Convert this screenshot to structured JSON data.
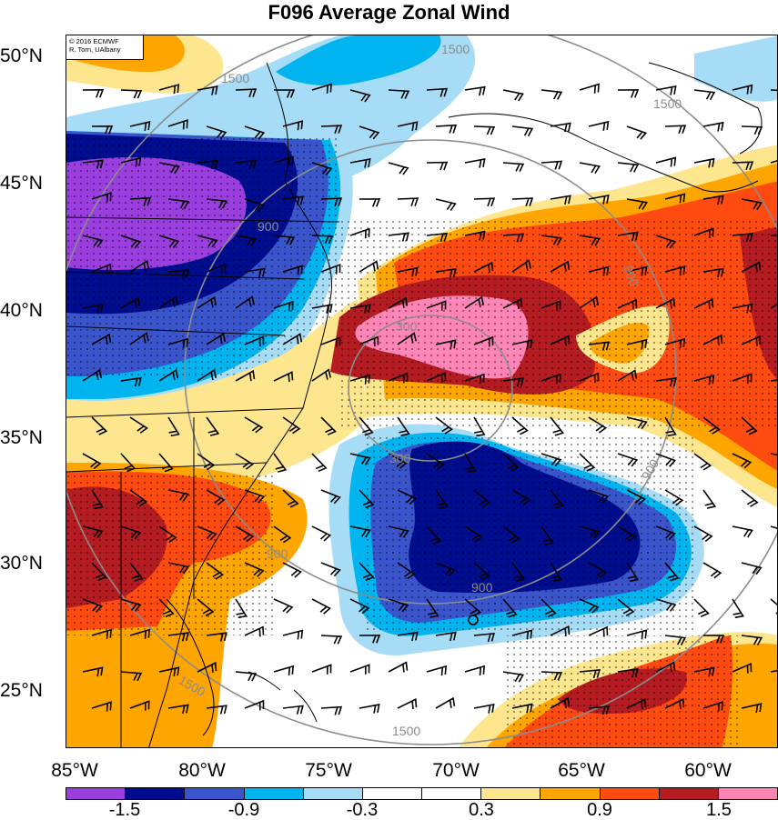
{
  "title": "F096 Average Zonal Wind",
  "credit": {
    "line1": "© 2016 ECMWF",
    "line2": "R. Torn, UAlbany"
  },
  "lat_labels": [
    "50°N",
    "45°N",
    "40°N",
    "35°N",
    "30°N",
    "25°N"
  ],
  "lon_labels": [
    "85°W",
    "80°W",
    "75°W",
    "70°W",
    "65°W",
    "60°W"
  ],
  "contour_labels": [
    "1500",
    "1500",
    "1500",
    "900",
    "900",
    "900",
    "900",
    "300",
    "300",
    "900",
    "1500",
    "1500"
  ],
  "colorbar": {
    "colors": [
      "#9a3ee0",
      "#000d8f",
      "#3a55cc",
      "#00b4f0",
      "#a6dcf5",
      "#ffffff",
      "#ffffff",
      "#fde68e",
      "#ffa500",
      "#ff4a10",
      "#b51c22",
      "#ff85b7"
    ],
    "labels": [
      "-1.5",
      "-0.9",
      "-0.3",
      "0.3",
      "0.9",
      "1.5"
    ]
  },
  "palette": {
    "purple": "#9a3ee0",
    "navy": "#000d8f",
    "blue": "#3a55cc",
    "cyan": "#00b4f0",
    "lightblue": "#a6dcf5",
    "yellow": "#fde68e",
    "orange": "#ffa500",
    "redorange": "#ff4a10",
    "darkred": "#b51c22",
    "pink": "#ff85b7"
  }
}
